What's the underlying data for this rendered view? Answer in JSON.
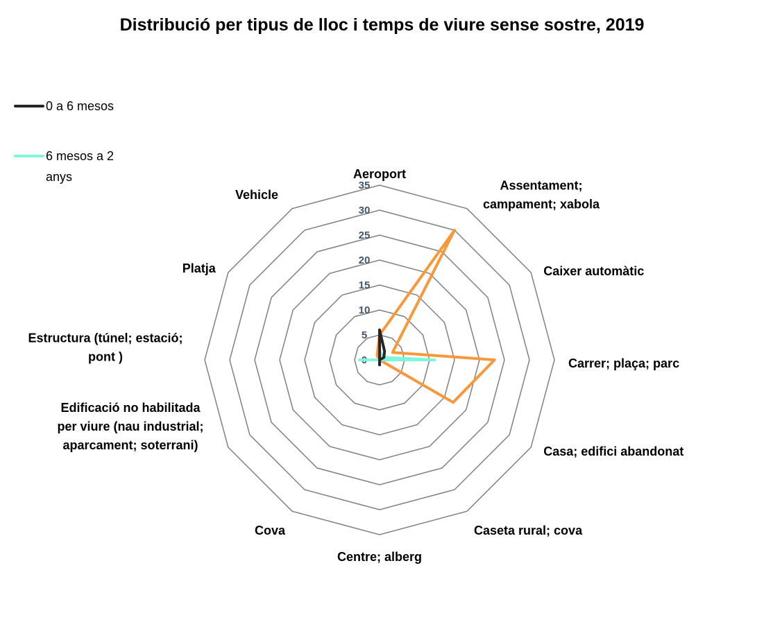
{
  "chart_data": {
    "type": "radar",
    "title": "Distribució per tipus de lloc i temps de viure sense sostre, 2019",
    "categories": [
      "Aeroport",
      "Assentament; campament; xabola",
      "Caixer automàtic",
      "Carrer; plaça; parc",
      "Casa; edifici abandonat",
      "Caseta rural; cova",
      "Centre; alberg",
      "Cova",
      "Edificació no habilitada per viure (nau industrial; aparcament; soterrani)",
      "Estructura (túnel; estació; pont )",
      "Platja",
      "Vehicle"
    ],
    "category_label_lines": [
      [
        "Aeroport"
      ],
      [
        "Assentament;",
        "campament; xabola"
      ],
      [
        "Caixer automàtic"
      ],
      [
        "Carrer; plaça; parc"
      ],
      [
        "Casa; edifici abandonat"
      ],
      [
        "Caseta rural; cova"
      ],
      [
        "Centre; alberg"
      ],
      [
        "Cova"
      ],
      [
        "Edificació no habilitada",
        "per viure (nau industrial;",
        "aparcament; soterrani)"
      ],
      [
        "Estructura (túnel; estació;",
        "pont )"
      ],
      [
        "Platja"
      ],
      [
        "Vehicle"
      ]
    ],
    "radial_ticks": [
      "0",
      "5",
      "10",
      "15",
      "20",
      "25",
      "30",
      "35"
    ],
    "rlim": [
      0,
      35
    ],
    "grid": true,
    "legend_position": "top-left",
    "series": [
      {
        "name": "0 a 6 mesos",
        "color": "#262626",
        "values": [
          6,
          2,
          1,
          0,
          0,
          0,
          1,
          0,
          0,
          0,
          0,
          0
        ]
      },
      {
        "name": "6 mesos a 2 anys",
        "color": "#7ff5dc",
        "values": [
          2,
          1,
          1,
          11,
          0,
          0,
          0,
          0,
          0,
          4,
          0,
          0
        ]
      },
      {
        "name": "",
        "color": "#f7993b",
        "values": [
          5,
          30,
          3,
          23,
          17,
          0,
          0,
          0,
          0,
          1,
          0,
          1
        ]
      }
    ]
  }
}
